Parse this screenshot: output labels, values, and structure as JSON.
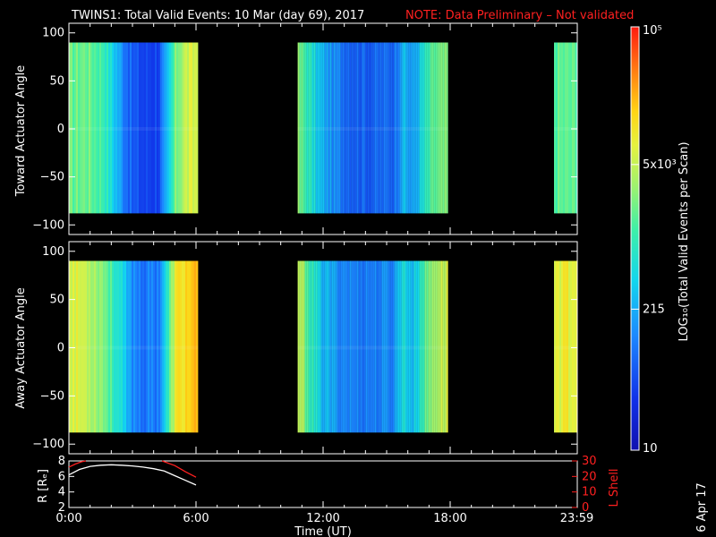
{
  "title": {
    "text": "TWINS1: Total Valid Events: 10 Mar (day  69), 2017",
    "note": "NOTE: Data Preliminary – Not validated"
  },
  "stamp": "6 Apr 17",
  "colorbar": {
    "label": "LOG₁₀(Total Valid Events per Scan)",
    "ticks": [
      {
        "value": 100000,
        "label": "10⁵"
      },
      {
        "value": 5000,
        "label": "5x10³"
      },
      {
        "value": 215,
        "label": "215"
      },
      {
        "value": 10,
        "label": "10"
      }
    ]
  },
  "colors": {
    "note": "#ff2020",
    "r_line": "#ffffff",
    "lshell_line": "#ff2020"
  },
  "chart_data": [
    {
      "type": "heatmap",
      "name": "toward",
      "xlabel": "",
      "ylabel": "Toward Actuator Angle",
      "xlim": [
        0,
        24
      ],
      "ylim": [
        -110,
        110
      ],
      "yticks": [
        100,
        50,
        0,
        -50,
        -100
      ],
      "data_ylim": [
        -88,
        90
      ],
      "segments": [
        {
          "start": 0.0,
          "end": 6.1,
          "profile": [
            [
              0,
              0.56
            ],
            [
              0.8,
              0.58
            ],
            [
              1.6,
              0.52
            ],
            [
              2.5,
              0.28
            ],
            [
              3.0,
              0.18
            ],
            [
              3.6,
              0.15
            ],
            [
              4.2,
              0.17
            ],
            [
              4.6,
              0.32
            ],
            [
              5.0,
              0.58
            ],
            [
              5.5,
              0.68
            ],
            [
              6.1,
              0.7
            ]
          ]
        },
        {
          "start": 10.8,
          "end": 17.9,
          "profile": [
            [
              10.8,
              0.58
            ],
            [
              11.2,
              0.5
            ],
            [
              11.8,
              0.36
            ],
            [
              12.5,
              0.27
            ],
            [
              13.5,
              0.22
            ],
            [
              14.5,
              0.21
            ],
            [
              15.3,
              0.23
            ],
            [
              15.7,
              0.36
            ],
            [
              16.2,
              0.3
            ],
            [
              16.7,
              0.44
            ],
            [
              17.2,
              0.55
            ],
            [
              17.9,
              0.58
            ]
          ]
        },
        {
          "start": 22.9,
          "end": 24.0,
          "profile": [
            [
              22.9,
              0.55
            ],
            [
              24.0,
              0.55
            ]
          ]
        }
      ]
    },
    {
      "type": "heatmap",
      "name": "away",
      "xlabel": "",
      "ylabel": "Away Actuator Angle",
      "xlim": [
        0,
        24
      ],
      "ylim": [
        -110,
        110
      ],
      "yticks": [
        100,
        50,
        0,
        -50,
        -100
      ],
      "data_ylim": [
        -88,
        90
      ],
      "segments": [
        {
          "start": 0.0,
          "end": 6.1,
          "profile": [
            [
              0,
              0.72
            ],
            [
              0.8,
              0.68
            ],
            [
              1.6,
              0.6
            ],
            [
              2.3,
              0.45
            ],
            [
              2.8,
              0.3
            ],
            [
              3.5,
              0.24
            ],
            [
              4.2,
              0.26
            ],
            [
              4.6,
              0.45
            ],
            [
              5.0,
              0.74
            ],
            [
              5.6,
              0.8
            ],
            [
              6.1,
              0.8
            ]
          ]
        },
        {
          "start": 10.8,
          "end": 17.9,
          "profile": [
            [
              10.8,
              0.68
            ],
            [
              11.2,
              0.56
            ],
            [
              11.8,
              0.38
            ],
            [
              12.5,
              0.3
            ],
            [
              13.5,
              0.26
            ],
            [
              14.5,
              0.26
            ],
            [
              15.3,
              0.28
            ],
            [
              15.7,
              0.44
            ],
            [
              16.2,
              0.36
            ],
            [
              16.7,
              0.52
            ],
            [
              17.2,
              0.64
            ],
            [
              17.9,
              0.7
            ]
          ]
        },
        {
          "start": 22.9,
          "end": 24.0,
          "profile": [
            [
              22.9,
              0.72
            ],
            [
              24.0,
              0.74
            ]
          ]
        }
      ]
    },
    {
      "type": "line",
      "name": "orbit",
      "xlabel": "Time (UT)",
      "ylabel": "R [Rₑ]",
      "y2label": "L Shell",
      "xlim": [
        0,
        24
      ],
      "ylim": [
        2,
        8
      ],
      "yticks": [
        2,
        4,
        6,
        8
      ],
      "y2lim": [
        0,
        30
      ],
      "y2ticks": [
        0,
        10,
        20,
        30
      ],
      "xticks": [
        {
          "value": 0,
          "label": "0:00"
        },
        {
          "value": 6,
          "label": "6:00"
        },
        {
          "value": 12,
          "label": "12:00"
        },
        {
          "value": 18,
          "label": "18:00"
        },
        {
          "value": 23.98,
          "label": "23:59"
        }
      ],
      "series": [
        {
          "x": [
            0,
            0.5,
            1,
            1.5,
            2,
            2.5,
            3,
            3.5,
            4,
            4.5,
            5,
            5.5,
            6
          ],
          "y": [
            6.2,
            6.9,
            7.3,
            7.45,
            7.5,
            7.45,
            7.35,
            7.2,
            7.0,
            6.7,
            6.1,
            5.5,
            4.9
          ]
        },
        {
          "x": [
            0,
            0.3,
            0.6,
            0.8
          ],
          "y": [
            26,
            28,
            29.5,
            30
          ],
          "axis": "right"
        },
        {
          "x": [
            4.4,
            5.0,
            5.5,
            6.0
          ],
          "y": [
            30,
            27,
            23,
            19.5
          ],
          "axis": "right"
        }
      ]
    }
  ]
}
